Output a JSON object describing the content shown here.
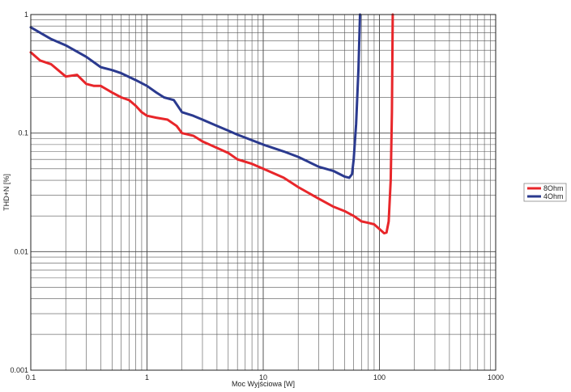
{
  "chart_data": {
    "type": "line",
    "title": "",
    "xlabel": "Moc Wyjściowa [W]",
    "ylabel": "THD+N [%]",
    "x_scale": "log",
    "y_scale": "log",
    "xlim": [
      0.1,
      1000
    ],
    "ylim": [
      0.001,
      1
    ],
    "x_ticks": [
      "0.1",
      "1",
      "10",
      "100",
      "1000"
    ],
    "y_ticks": [
      "0.001",
      "0.01",
      "0.1",
      "1"
    ],
    "grid": true,
    "legend_position": "right",
    "series": [
      {
        "name": "8Ohm",
        "color": "#e8262a",
        "points": [
          [
            0.1,
            0.48
          ],
          [
            0.12,
            0.41
          ],
          [
            0.15,
            0.38
          ],
          [
            0.2,
            0.3
          ],
          [
            0.25,
            0.31
          ],
          [
            0.3,
            0.26
          ],
          [
            0.35,
            0.25
          ],
          [
            0.4,
            0.25
          ],
          [
            0.5,
            0.22
          ],
          [
            0.6,
            0.2
          ],
          [
            0.7,
            0.19
          ],
          [
            0.8,
            0.17
          ],
          [
            0.9,
            0.15
          ],
          [
            1.0,
            0.14
          ],
          [
            1.2,
            0.135
          ],
          [
            1.5,
            0.13
          ],
          [
            1.8,
            0.115
          ],
          [
            2.0,
            0.1
          ],
          [
            2.5,
            0.095
          ],
          [
            3.0,
            0.085
          ],
          [
            4.0,
            0.075
          ],
          [
            5.0,
            0.068
          ],
          [
            6.0,
            0.06
          ],
          [
            8.0,
            0.055
          ],
          [
            10.0,
            0.05
          ],
          [
            15.0,
            0.042
          ],
          [
            20.0,
            0.035
          ],
          [
            30.0,
            0.028
          ],
          [
            40.0,
            0.024
          ],
          [
            50.0,
            0.022
          ],
          [
            60.0,
            0.02
          ],
          [
            70.0,
            0.018
          ],
          [
            80.0,
            0.0175
          ],
          [
            90.0,
            0.017
          ],
          [
            100.0,
            0.0155
          ],
          [
            110.0,
            0.0143
          ],
          [
            115.0,
            0.0145
          ],
          [
            120.0,
            0.018
          ],
          [
            125.0,
            0.04
          ],
          [
            128.0,
            0.15
          ],
          [
            130.0,
            1.0
          ]
        ]
      },
      {
        "name": "4Ohm",
        "color": "#2b3a8f",
        "points": [
          [
            0.1,
            0.78
          ],
          [
            0.15,
            0.62
          ],
          [
            0.2,
            0.55
          ],
          [
            0.3,
            0.44
          ],
          [
            0.4,
            0.36
          ],
          [
            0.5,
            0.34
          ],
          [
            0.6,
            0.32
          ],
          [
            0.8,
            0.28
          ],
          [
            1.0,
            0.25
          ],
          [
            1.2,
            0.22
          ],
          [
            1.4,
            0.2
          ],
          [
            1.7,
            0.19
          ],
          [
            2.0,
            0.15
          ],
          [
            2.5,
            0.14
          ],
          [
            3.0,
            0.13
          ],
          [
            4.0,
            0.115
          ],
          [
            5.0,
            0.105
          ],
          [
            6.0,
            0.097
          ],
          [
            8.0,
            0.087
          ],
          [
            10.0,
            0.08
          ],
          [
            15.0,
            0.07
          ],
          [
            20.0,
            0.063
          ],
          [
            30.0,
            0.052
          ],
          [
            40.0,
            0.048
          ],
          [
            50.0,
            0.043
          ],
          [
            55.0,
            0.042
          ],
          [
            58.0,
            0.045
          ],
          [
            60.0,
            0.06
          ],
          [
            63.0,
            0.12
          ],
          [
            66.0,
            0.35
          ],
          [
            68.0,
            1.0
          ]
        ]
      }
    ]
  }
}
